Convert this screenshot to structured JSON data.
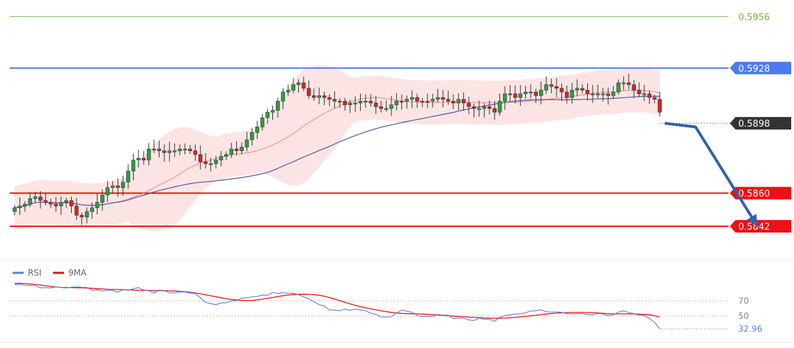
{
  "chart_data": {
    "type": "candlestick",
    "price_panel": {
      "y_range": [
        0.5825,
        0.5965
      ],
      "levels": [
        {
          "value": 0.5956,
          "label": "0.5956",
          "color": "#7cb342",
          "style": "line-text"
        },
        {
          "value": 0.5928,
          "label": "0.5928",
          "color": "#4a7cf0",
          "style": "tag"
        },
        {
          "value": 0.5898,
          "label": "0.5898",
          "color": "#333333",
          "style": "tag-dotted"
        },
        {
          "value": 0.586,
          "label": "0.5860",
          "color": "#ee1111",
          "style": "tag"
        },
        {
          "value": 0.5842,
          "label": "0.5842",
          "color": "#ee1111",
          "style": "tag"
        }
      ],
      "colors": {
        "bull": "#2e9e3e",
        "bear": "#dd2222",
        "band": "#f8b3b3",
        "ma_fast": "#f08080",
        "ma_slow": "#4a5a9c",
        "arrow": "#3262a8"
      },
      "close": [
        0.5852,
        0.5853,
        0.5854,
        0.5857,
        0.5858,
        0.5856,
        0.5855,
        0.5854,
        0.5853,
        0.5855,
        0.5856,
        0.5853,
        0.5848,
        0.5847,
        0.585,
        0.5852,
        0.5855,
        0.5859,
        0.5863,
        0.5864,
        0.5863,
        0.5866,
        0.5872,
        0.5878,
        0.5879,
        0.5878,
        0.5884,
        0.5884,
        0.5883,
        0.5882,
        0.5883,
        0.5883,
        0.5884,
        0.5884,
        0.5883,
        0.5881,
        0.5877,
        0.5876,
        0.5876,
        0.5878,
        0.588,
        0.5881,
        0.5884,
        0.5883,
        0.5885,
        0.5889,
        0.5893,
        0.5896,
        0.5901,
        0.5904,
        0.5905,
        0.591,
        0.5915,
        0.5916,
        0.5919,
        0.592,
        0.5917,
        0.5913,
        0.5912,
        0.5913,
        0.5912,
        0.5911,
        0.591,
        0.591,
        0.5908,
        0.5909,
        0.5909,
        0.591,
        0.591,
        0.5909,
        0.5907,
        0.5906,
        0.5906,
        0.5908,
        0.591,
        0.591,
        0.5911,
        0.5912,
        0.591,
        0.591,
        0.591,
        0.5911,
        0.5912,
        0.5911,
        0.591,
        0.5909,
        0.5911,
        0.5909,
        0.5907,
        0.5906,
        0.5906,
        0.5907,
        0.5906,
        0.5904,
        0.591,
        0.5914,
        0.5914,
        0.5912,
        0.5914,
        0.5915,
        0.5915,
        0.5913,
        0.5916,
        0.5919,
        0.5918,
        0.5917,
        0.5915,
        0.5912,
        0.5916,
        0.5917,
        0.5916,
        0.5914,
        0.5914,
        0.5914,
        0.5914,
        0.5913,
        0.5915,
        0.592,
        0.592,
        0.5919,
        0.5916,
        0.5914,
        0.5914,
        0.5912,
        0.5911,
        0.5904
      ],
      "forecast_path": [
        [
          0.5898,
          0
        ],
        [
          0.5896,
          6
        ],
        [
          0.5842,
          18
        ]
      ]
    },
    "rsi_panel": {
      "y_range": [
        26,
        100
      ],
      "levels": [
        {
          "value": 70,
          "label": "70"
        },
        {
          "value": 50,
          "label": "50"
        }
      ],
      "current": {
        "value": 32.96,
        "label": "32.96"
      },
      "legend": [
        {
          "name": "RSI",
          "color": "#5a7fe0"
        },
        {
          "name": "9MA",
          "color": "#ee1111"
        }
      ],
      "rsi": [
        92.1,
        92.3,
        90.8,
        90.6,
        90.6,
        87.3,
        87.8,
        87.2,
        88.8,
        87.9,
        87.2,
        88.2,
        88.8,
        88.2,
        87.9,
        84.1,
        85.0,
        83.2,
        84.3,
        83.7,
        81.7,
        85.0,
        84.2,
        86.3,
        87.7,
        84.6,
        83.5,
        80.4,
        84.5,
        84.0,
        80.9,
        80.6,
        82.1,
        81.9,
        80.7,
        79.9,
        74.0,
        68.1,
        66.5,
        65.0,
        67.4,
        67.5,
        70.1,
        70.4,
        73.9,
        74.2,
        75.5,
        76.0,
        77.7,
        77.6,
        81.3,
        79.9,
        80.9,
        80.3,
        80.3,
        78.5,
        75.4,
        72.9,
        68.9,
        65.2,
        63.3,
        57.9,
        58.0,
        56.9,
        59.3,
        57.5,
        59.1,
        58.1,
        56.9,
        53.8,
        52.1,
        48.8,
        48.6,
        49.1,
        54.0,
        57.9,
        56.3,
        55.0,
        50.8,
        49.3,
        49.3,
        49.0,
        52.1,
        51.2,
        51.2,
        46.7,
        47.2,
        47.3,
        44.8,
        44.1,
        47.3,
        45.5,
        46.2,
        42.9,
        48.4,
        50.3,
        51.6,
        52.7,
        52.9,
        54.3,
        56.6,
        56.9,
        58.4,
        55.8,
        55.2,
        55.6,
        54.9,
        53.0,
        52.8,
        53.1,
        53.2,
        52.1,
        51.6,
        53.5,
        52.6,
        50.6,
        51.6,
        55.2,
        56.9,
        54.7,
        53.1,
        50.9,
        50.7,
        46.6,
        41.7,
        32.96
      ],
      "ma9": [
        93.4,
        93.3,
        93.1,
        92.6,
        92.0,
        91.2,
        90.3,
        89.3,
        88.6,
        88.1,
        87.8,
        87.6,
        87.5,
        87.4,
        87.2,
        86.8,
        86.3,
        85.9,
        85.6,
        85.4,
        85.2,
        85.0,
        84.8,
        84.5,
        84.2,
        84.1,
        84.0,
        83.8,
        83.7,
        83.6,
        83.4,
        83.2,
        82.8,
        82.3,
        81.6,
        80.7,
        79.6,
        78.3,
        76.9,
        75.6,
        74.3,
        73.1,
        72.1,
        71.3,
        70.7,
        70.4,
        70.7,
        71.4,
        72.3,
        73.5,
        74.7,
        75.9,
        77.0,
        77.9,
        78.5,
        78.9,
        79.0,
        78.9,
        78.4,
        77.6,
        76.3,
        74.6,
        72.6,
        70.4,
        68.2,
        66.1,
        64.1,
        62.5,
        61.0,
        59.6,
        58.3,
        57.0,
        55.8,
        54.8,
        54.0,
        53.5,
        53.2,
        53.0,
        52.8,
        52.6,
        52.2,
        51.7,
        51.3,
        50.8,
        50.3,
        49.9,
        49.4,
        49.0,
        48.6,
        48.2,
        47.8,
        47.4,
        47.2,
        47.1,
        47.1,
        47.3,
        47.6,
        48.1,
        48.8,
        49.5,
        50.3,
        51.1,
        51.9,
        52.6,
        53.2,
        53.8,
        54.2,
        54.5,
        54.7,
        54.8,
        54.8,
        54.6,
        54.3,
        54.0,
        53.6,
        53.2,
        52.9,
        52.8,
        52.8,
        52.8,
        52.7,
        52.5,
        52.2,
        51.6,
        50.5,
        48.6
      ]
    }
  }
}
